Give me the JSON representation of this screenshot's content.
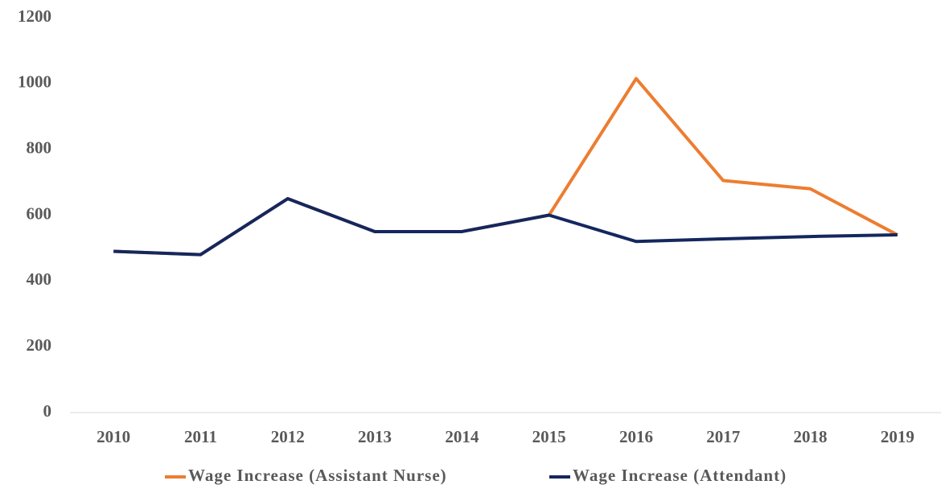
{
  "chart_data": {
    "type": "line",
    "categories": [
      "2010",
      "2011",
      "2012",
      "2013",
      "2014",
      "2015",
      "2016",
      "2017",
      "2018",
      "2019"
    ],
    "series": [
      {
        "name": "Wage Increase (Assistant Nurse)",
        "color": "#ed7d31",
        "values": [
          490,
          480,
          650,
          550,
          550,
          600,
          1015,
          705,
          680,
          540
        ]
      },
      {
        "name": "Wage Increase (Attendant)",
        "color": "#14275e",
        "values": [
          490,
          480,
          650,
          550,
          550,
          600,
          520,
          528,
          535,
          540
        ]
      }
    ],
    "ylim": [
      0,
      1200
    ],
    "yticks": [
      0,
      200,
      400,
      600,
      800,
      1000,
      1200
    ],
    "grid": false,
    "legend": "bottom"
  }
}
